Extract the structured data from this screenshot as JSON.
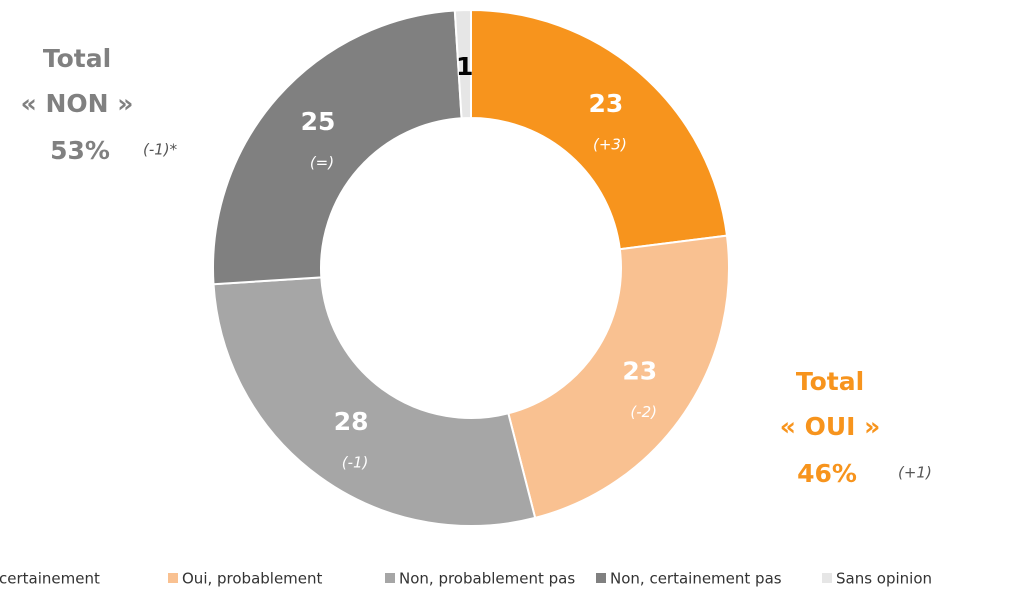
{
  "chart_data": {
    "type": "donut",
    "categories": [
      "Oui, certainement",
      "Oui, probablement",
      "Non, probablement pas",
      "Non, certainement pas",
      "Sans opinion"
    ],
    "values": [
      23,
      23,
      28,
      25,
      1
    ],
    "colors": [
      "#F7941D",
      "#F9C191",
      "#A6A6A6",
      "#808080",
      "#E6E6E6"
    ],
    "changes": [
      "(+3)",
      "(-2)",
      "(-1)",
      "(=)",
      null
    ],
    "annotations": [
      {
        "title": "Total",
        "group": "« NON »",
        "total": "53%",
        "change": "(-1)*",
        "color": "#808080"
      },
      {
        "title": "Total",
        "group": "« OUI »",
        "total": "46%",
        "change": "(+1)",
        "color": "#F7941D"
      }
    ],
    "legend": "bottom"
  }
}
